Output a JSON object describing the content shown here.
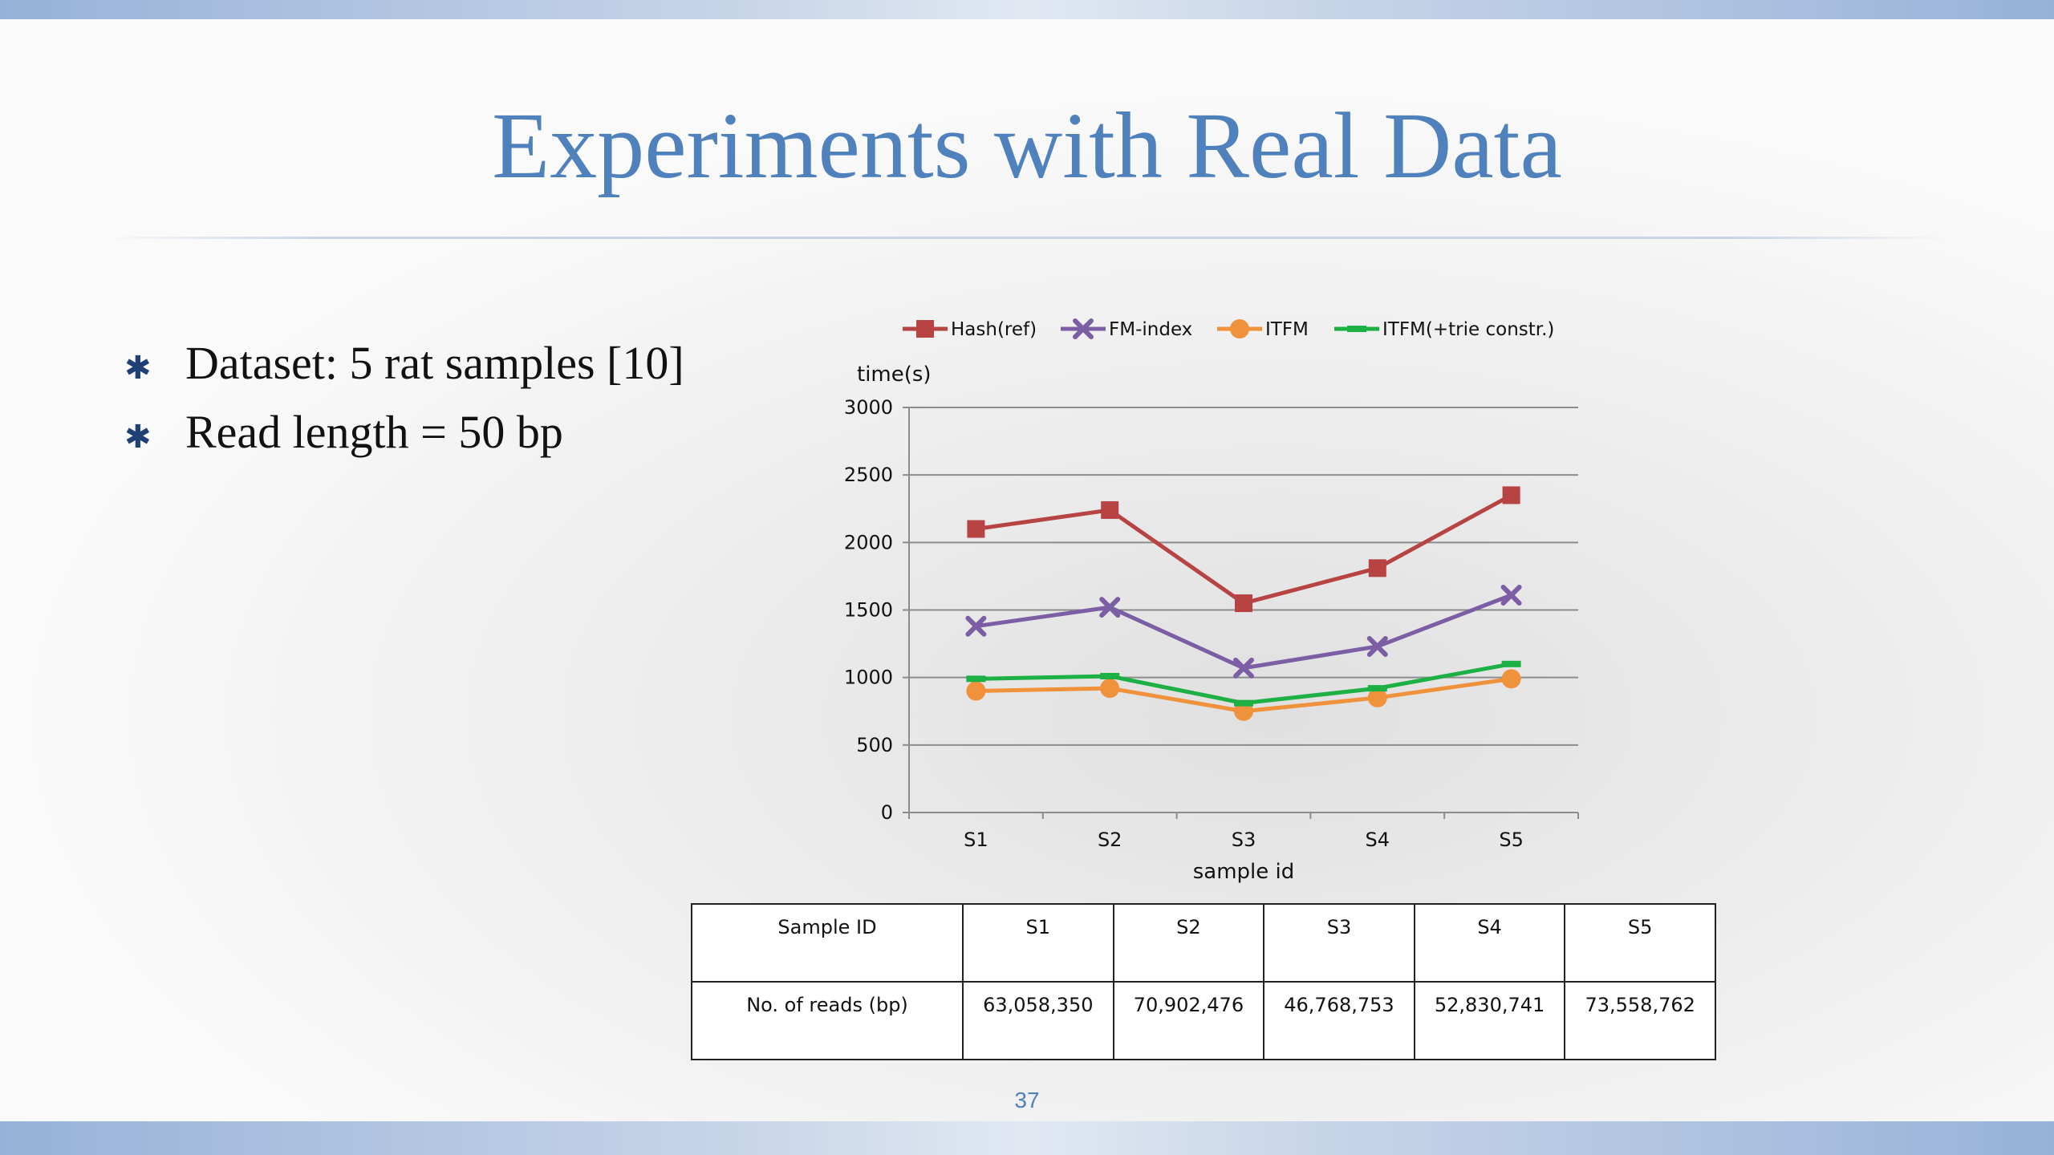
{
  "slide": {
    "title": "Experiments with Real Data",
    "bullets": [
      "Dataset: 5 rat samples [10]",
      "Read length = 50 bp"
    ],
    "page_number": "37"
  },
  "table": {
    "header": [
      "Sample ID",
      "S1",
      "S2",
      "S3",
      "S4",
      "S5"
    ],
    "row": [
      "No. of reads (bp)",
      "63,058,350",
      "70,902,476",
      "46,768,753",
      "52,830,741",
      "73,558,762"
    ]
  },
  "chart_data": {
    "type": "line",
    "categories": [
      "S1",
      "S2",
      "S3",
      "S4",
      "S5"
    ],
    "xlabel": "sample id",
    "ylabel": "time(s)",
    "ylim": [
      0,
      3000
    ],
    "yticks": [
      0,
      500,
      1000,
      1500,
      2000,
      2500,
      3000
    ],
    "grid": true,
    "legend": "top",
    "series": [
      {
        "name": "Hash(ref)",
        "color": "#b84343",
        "marker": "square",
        "values": [
          2100,
          2240,
          1550,
          1810,
          2350
        ]
      },
      {
        "name": "FM-index",
        "color": "#7b5ea3",
        "marker": "x",
        "values": [
          1380,
          1520,
          1070,
          1230,
          1610
        ]
      },
      {
        "name": "ITFM",
        "color": "#f0913c",
        "marker": "circle",
        "values": [
          900,
          920,
          750,
          850,
          990
        ]
      },
      {
        "name": "ITFM(+trie constr.)",
        "color": "#1db045",
        "marker": "dash",
        "values": [
          990,
          1010,
          810,
          920,
          1100
        ]
      }
    ]
  }
}
